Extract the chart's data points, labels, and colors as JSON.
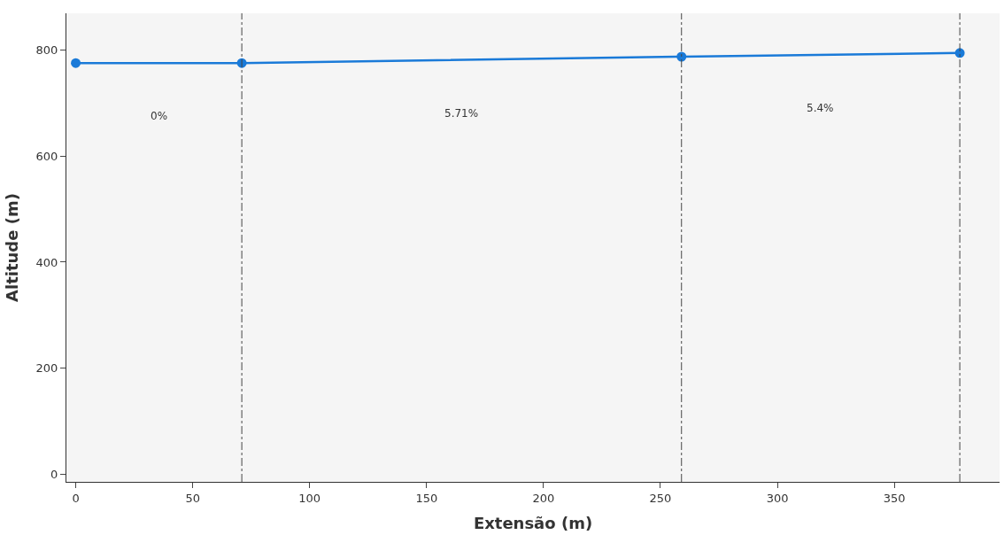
{
  "chart_data": {
    "type": "line",
    "xlabel": "Extensão (m)",
    "ylabel": "Altitude (m)",
    "x": [
      0,
      71,
      259,
      378
    ],
    "series": [
      {
        "color": "#1a7ad8",
        "values": [
          776,
          776,
          788,
          795
        ]
      }
    ],
    "xlim": [
      -4,
      395
    ],
    "ylim": [
      -15,
      870
    ],
    "xticks": [
      0,
      50,
      100,
      150,
      200,
      250,
      300,
      350
    ],
    "yticks": [
      0,
      200,
      400,
      600,
      800
    ],
    "ref_lines": [
      {
        "axis": "x",
        "value": 71,
        "color": "#444444",
        "line_style": "dashdot"
      },
      {
        "axis": "x",
        "value": 259,
        "color": "#444444",
        "line_style": "dashdot"
      },
      {
        "axis": "x",
        "value": 378,
        "color": "#444444",
        "line_style": "dashdot"
      }
    ],
    "annotations": [
      "0%",
      "5.71%",
      "5.4%"
    ],
    "marker": "circle",
    "line_style": "solid",
    "grid": false
  }
}
